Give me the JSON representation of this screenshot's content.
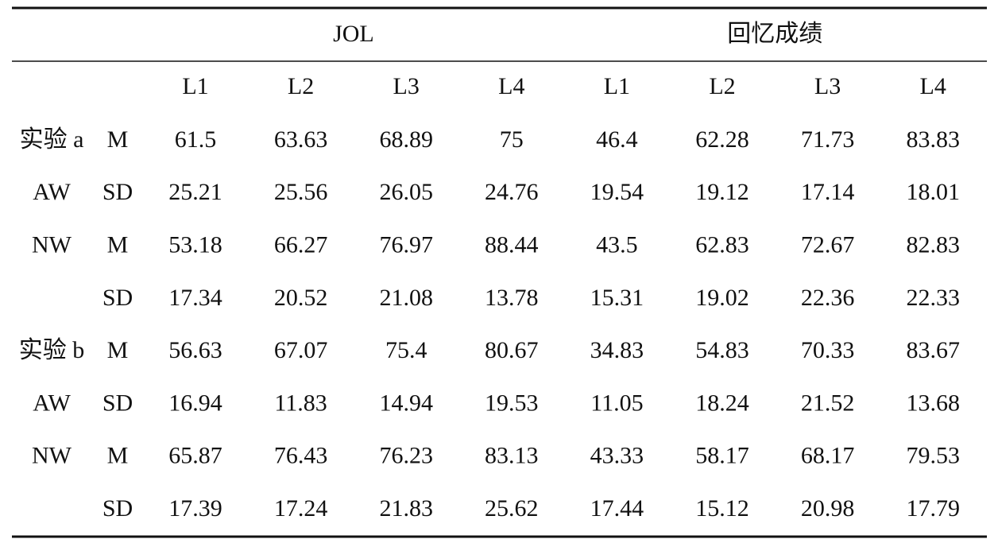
{
  "table": {
    "groups": [
      "JOL",
      "回忆成绩"
    ],
    "levels": [
      "L1",
      "L2",
      "L3",
      "L4",
      "L1",
      "L2",
      "L3",
      "L4"
    ],
    "rows": [
      {
        "label": "实验 a",
        "stat": "M",
        "values": [
          "61.5",
          "63.63",
          "68.89",
          "75",
          "46.4",
          "62.28",
          "71.73",
          "83.83"
        ]
      },
      {
        "label": "AW",
        "stat": "SD",
        "values": [
          "25.21",
          "25.56",
          "26.05",
          "24.76",
          "19.54",
          "19.12",
          "17.14",
          "18.01"
        ]
      },
      {
        "label": "NW",
        "stat": "M",
        "values": [
          "53.18",
          "66.27",
          "76.97",
          "88.44",
          "43.5",
          "62.83",
          "72.67",
          "82.83"
        ]
      },
      {
        "stat": "SD",
        "values": [
          "17.34",
          "20.52",
          "21.08",
          "13.78",
          "15.31",
          "19.02",
          "22.36",
          "22.33"
        ]
      },
      {
        "label": "实验 b",
        "stat": "M",
        "values": [
          "56.63",
          "67.07",
          "75.4",
          "80.67",
          "34.83",
          "54.83",
          "70.33",
          "83.67"
        ]
      },
      {
        "label": "AW",
        "stat": "SD",
        "values": [
          "16.94",
          "11.83",
          "14.94",
          "19.53",
          "11.05",
          "18.24",
          "21.52",
          "13.68"
        ]
      },
      {
        "label": "NW",
        "stat": "M",
        "values": [
          "65.87",
          "76.43",
          "76.23",
          "83.13",
          "43.33",
          "58.17",
          "68.17",
          "79.53"
        ]
      },
      {
        "stat": "SD",
        "values": [
          "17.39",
          "17.24",
          "21.83",
          "25.62",
          "17.44",
          "15.12",
          "20.98",
          "17.79"
        ]
      }
    ]
  }
}
